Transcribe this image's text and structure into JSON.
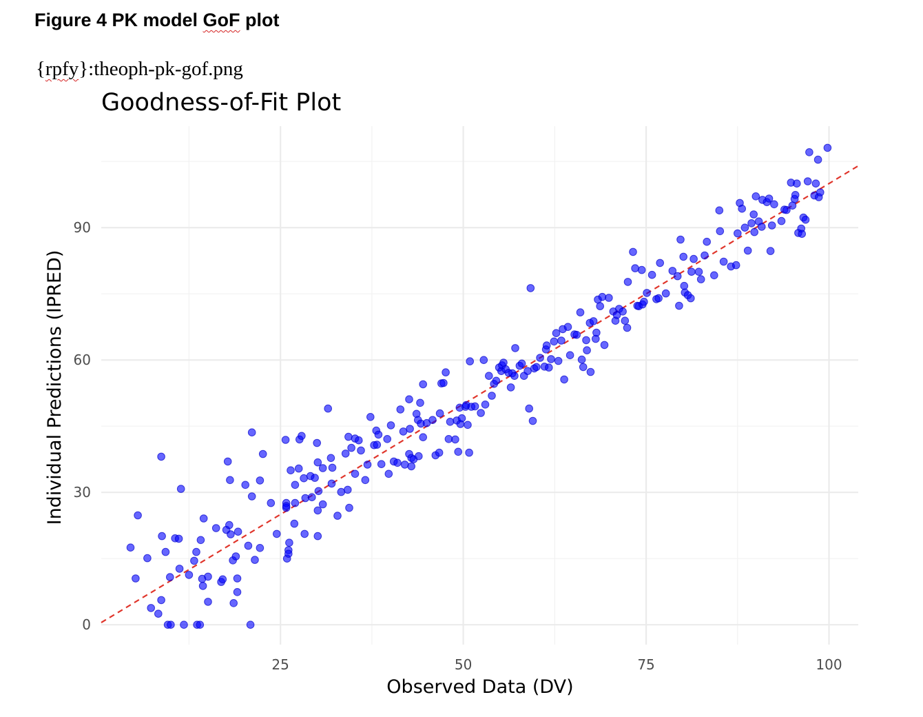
{
  "document": {
    "heading_parts": [
      "Figure 4 PK model ",
      "GoF",
      " plot"
    ],
    "reference_parts": [
      "{",
      "rpfy",
      "}:theoph-pk-gof.png"
    ]
  },
  "chart_data": {
    "type": "scatter",
    "title": "Goodness-of-Fit Plot",
    "xlabel": "Observed Data (DV)",
    "ylabel": "Individual Predictions (IPRED)",
    "xlim": [
      0.5,
      104
    ],
    "ylim": [
      -4.5,
      113
    ],
    "x_ticks": [
      25,
      50,
      75,
      100
    ],
    "x_tick_labels": [
      "25",
      "50",
      "75",
      "100"
    ],
    "y_ticks": [
      0,
      30,
      60,
      90
    ],
    "y_tick_labels": [
      "0",
      "30",
      "60",
      "90"
    ],
    "grid": true,
    "legend": "none",
    "point_color": "#0000ff",
    "reference_line": {
      "type": "identity",
      "color": "#e0352b",
      "style": "dashed"
    },
    "points": [
      [
        4.5,
        17.5
      ],
      [
        5.2,
        10.5
      ],
      [
        5.5,
        24.8
      ],
      [
        6.8,
        15.1
      ],
      [
        7.3,
        3.8
      ],
      [
        8.3,
        2.5
      ],
      [
        8.7,
        5.6
      ],
      [
        8.8,
        20.1
      ],
      [
        8.7,
        38.1
      ],
      [
        9.3,
        16.5
      ],
      [
        9.6,
        0
      ],
      [
        9.9,
        10.8
      ],
      [
        10.0,
        0
      ],
      [
        10.6,
        19.6
      ],
      [
        11.1,
        19.5
      ],
      [
        11.2,
        12.7
      ],
      [
        11.4,
        30.8
      ],
      [
        11.8,
        0
      ],
      [
        12.5,
        11.3
      ],
      [
        13.2,
        14.5
      ],
      [
        13.5,
        16.5
      ],
      [
        13.6,
        0
      ],
      [
        14.0,
        0
      ],
      [
        14.1,
        19.2
      ],
      [
        14.3,
        10.4
      ],
      [
        14.4,
        8.8
      ],
      [
        14.5,
        24.1
      ],
      [
        15.1,
        10.9
      ],
      [
        15.1,
        5.2
      ],
      [
        16.2,
        21.9
      ],
      [
        16.9,
        9.7
      ],
      [
        17.1,
        10.3
      ],
      [
        17.6,
        21.5
      ],
      [
        17.8,
        37.0
      ],
      [
        18.0,
        22.6
      ],
      [
        18.1,
        32.8
      ],
      [
        18.2,
        20.5
      ],
      [
        18.5,
        14.6
      ],
      [
        18.6,
        4.9
      ],
      [
        18.9,
        15.5
      ],
      [
        19.1,
        7.4
      ],
      [
        19.1,
        10.5
      ],
      [
        19.2,
        21.1
      ],
      [
        20.2,
        31.7
      ],
      [
        20.6,
        17.9
      ],
      [
        20.9,
        0
      ],
      [
        21.1,
        29.1
      ],
      [
        21.1,
        43.6
      ],
      [
        21.5,
        14.7
      ],
      [
        22.2,
        17.4
      ],
      [
        22.2,
        32.7
      ],
      [
        22.6,
        38.7
      ],
      [
        23.7,
        27.6
      ],
      [
        24.5,
        20.6
      ],
      [
        25.7,
        41.9
      ],
      [
        25.8,
        27.6
      ],
      [
        25.8,
        26.5
      ],
      [
        25.8,
        26.9
      ],
      [
        25.9,
        15.0
      ],
      [
        26.1,
        16.9
      ],
      [
        26.1,
        16.1
      ],
      [
        26.2,
        18.6
      ],
      [
        26.4,
        35.0
      ],
      [
        26.9,
        22.9
      ],
      [
        27.0,
        27.6
      ],
      [
        27.0,
        31.7
      ],
      [
        27.5,
        35.4
      ],
      [
        27.6,
        42.0
      ],
      [
        27.9,
        42.8
      ],
      [
        28.2,
        33.2
      ],
      [
        28.3,
        20.6
      ],
      [
        28.4,
        28.7
      ],
      [
        29.1,
        33.7
      ],
      [
        29.3,
        28.9
      ],
      [
        29.7,
        33.3
      ],
      [
        30.0,
        41.2
      ],
      [
        30.1,
        20.1
      ],
      [
        30.1,
        25.9
      ],
      [
        30.1,
        36.8
      ],
      [
        30.2,
        30.3
      ],
      [
        30.8,
        27.3
      ],
      [
        30.8,
        35.5
      ],
      [
        31.5,
        49.0
      ],
      [
        31.9,
        37.8
      ],
      [
        32.1,
        35.6
      ],
      [
        32.0,
        32.0
      ],
      [
        32.8,
        24.7
      ],
      [
        33.3,
        30.1
      ],
      [
        33.9,
        38.8
      ],
      [
        34.2,
        30.6
      ],
      [
        34.3,
        42.6
      ],
      [
        34.4,
        26.5
      ],
      [
        34.7,
        40.1
      ],
      [
        35.2,
        42.2
      ],
      [
        35.2,
        34.2
      ],
      [
        35.7,
        41.8
      ],
      [
        36.0,
        39.5
      ],
      [
        36.6,
        32.8
      ],
      [
        36.9,
        36.3
      ],
      [
        37.3,
        47.1
      ],
      [
        37.8,
        40.7
      ],
      [
        38.1,
        44.0
      ],
      [
        38.2,
        40.8
      ],
      [
        38.4,
        43.1
      ],
      [
        38.8,
        36.4
      ],
      [
        39.6,
        42.1
      ],
      [
        39.8,
        34.2
      ],
      [
        40.1,
        45.2
      ],
      [
        40.5,
        37.0
      ],
      [
        41.0,
        36.7
      ],
      [
        41.4,
        48.8
      ],
      [
        41.8,
        43.8
      ],
      [
        42.0,
        36.3
      ],
      [
        42.6,
        51.1
      ],
      [
        42.6,
        38.7
      ],
      [
        42.7,
        44.4
      ],
      [
        42.9,
        35.9
      ],
      [
        42.9,
        37.8
      ],
      [
        43.2,
        37.5
      ],
      [
        43.6,
        47.8
      ],
      [
        43.8,
        46.4
      ],
      [
        43.9,
        38.2
      ],
      [
        44.1,
        50.3
      ],
      [
        44.2,
        45.6
      ],
      [
        44.5,
        54.5
      ],
      [
        44.5,
        42.5
      ],
      [
        45.0,
        45.7
      ],
      [
        45.8,
        46.4
      ],
      [
        46.2,
        38.4
      ],
      [
        46.7,
        39.0
      ],
      [
        46.8,
        47.9
      ],
      [
        47.0,
        54.7
      ],
      [
        47.3,
        54.8
      ],
      [
        47.6,
        57.2
      ],
      [
        48.0,
        42.1
      ],
      [
        48.2,
        46.0
      ],
      [
        48.9,
        42.0
      ],
      [
        49.1,
        46.3
      ],
      [
        49.3,
        39.2
      ],
      [
        49.5,
        49.2
      ],
      [
        49.6,
        45.5
      ],
      [
        49.8,
        46.8
      ],
      [
        50.3,
        49.4
      ],
      [
        50.4,
        49.8
      ],
      [
        50.6,
        45.3
      ],
      [
        50.8,
        39.0
      ],
      [
        50.9,
        59.7
      ],
      [
        51.1,
        49.4
      ],
      [
        51.6,
        49.5
      ],
      [
        52.4,
        48.0
      ],
      [
        52.8,
        60.0
      ],
      [
        53.0,
        49.9
      ],
      [
        53.5,
        56.4
      ],
      [
        53.9,
        51.9
      ],
      [
        54.2,
        54.6
      ],
      [
        54.5,
        55.3
      ],
      [
        54.9,
        58.3
      ],
      [
        55.2,
        57.5
      ],
      [
        55.3,
        58.8
      ],
      [
        55.5,
        59.4
      ],
      [
        55.8,
        57.9
      ],
      [
        56.2,
        57.1
      ],
      [
        56.5,
        53.8
      ],
      [
        56.7,
        57.0
      ],
      [
        57.0,
        56.4
      ],
      [
        57.1,
        62.7
      ],
      [
        57.7,
        58.7
      ],
      [
        58.0,
        59.2
      ],
      [
        58.3,
        56.4
      ],
      [
        58.8,
        57.5
      ],
      [
        59.0,
        49.0
      ],
      [
        59.2,
        76.3
      ],
      [
        59.5,
        46.2
      ],
      [
        59.7,
        58.1
      ],
      [
        60.0,
        58.4
      ],
      [
        60.5,
        60.5
      ],
      [
        61.1,
        58.5
      ],
      [
        61.3,
        62.4
      ],
      [
        61.4,
        63.3
      ],
      [
        61.7,
        58.3
      ],
      [
        62.0,
        60.2
      ],
      [
        62.4,
        64.2
      ],
      [
        62.7,
        66.1
      ],
      [
        63.0,
        59.8
      ],
      [
        63.4,
        64.4
      ],
      [
        63.6,
        67.0
      ],
      [
        63.8,
        55.6
      ],
      [
        64.3,
        67.5
      ],
      [
        64.6,
        61.1
      ],
      [
        65.2,
        65.8
      ],
      [
        65.5,
        65.7
      ],
      [
        66.0,
        70.8
      ],
      [
        66.2,
        60.1
      ],
      [
        66.4,
        58.4
      ],
      [
        66.8,
        64.5
      ],
      [
        66.9,
        62.2
      ],
      [
        67.3,
        68.4
      ],
      [
        67.4,
        57.3
      ],
      [
        67.8,
        68.8
      ],
      [
        68.1,
        64.8
      ],
      [
        68.2,
        66.2
      ],
      [
        68.4,
        73.7
      ],
      [
        68.7,
        72.2
      ],
      [
        69.0,
        74.3
      ],
      [
        69.3,
        63.4
      ],
      [
        69.9,
        74.1
      ],
      [
        70.5,
        71.0
      ],
      [
        70.8,
        68.9
      ],
      [
        71.0,
        70.2
      ],
      [
        71.3,
        71.6
      ],
      [
        71.8,
        71.0
      ],
      [
        72.1,
        68.9
      ],
      [
        72.4,
        67.3
      ],
      [
        72.5,
        77.7
      ],
      [
        73.2,
        84.5
      ],
      [
        73.5,
        80.8
      ],
      [
        73.8,
        72.3
      ],
      [
        74.0,
        72.2
      ],
      [
        74.4,
        80.4
      ],
      [
        74.5,
        72.6
      ],
      [
        74.7,
        73.2
      ],
      [
        75.1,
        75.2
      ],
      [
        75.8,
        79.3
      ],
      [
        76.4,
        73.8
      ],
      [
        76.7,
        74.0
      ],
      [
        76.9,
        82.0
      ],
      [
        77.7,
        75.1
      ],
      [
        78.6,
        80.2
      ],
      [
        79.3,
        79.0
      ],
      [
        79.5,
        72.3
      ],
      [
        79.7,
        87.3
      ],
      [
        80.1,
        83.4
      ],
      [
        80.2,
        76.8
      ],
      [
        80.3,
        75.3
      ],
      [
        80.7,
        74.7
      ],
      [
        81.1,
        74.0
      ],
      [
        81.2,
        80.0
      ],
      [
        81.5,
        82.9
      ],
      [
        82.2,
        80.0
      ],
      [
        82.5,
        78.3
      ],
      [
        83.0,
        83.7
      ],
      [
        83.3,
        86.8
      ],
      [
        84.3,
        79.2
      ],
      [
        85.0,
        93.9
      ],
      [
        85.1,
        89.2
      ],
      [
        85.6,
        82.3
      ],
      [
        86.6,
        81.2
      ],
      [
        87.3,
        81.5
      ],
      [
        87.5,
        88.7
      ],
      [
        87.8,
        95.6
      ],
      [
        88.1,
        94.3
      ],
      [
        88.5,
        90.0
      ],
      [
        88.9,
        84.8
      ],
      [
        89.4,
        91.0
      ],
      [
        89.7,
        93.0
      ],
      [
        89.8,
        89.0
      ],
      [
        90.0,
        97.1
      ],
      [
        90.4,
        91.4
      ],
      [
        90.8,
        90.2
      ],
      [
        90.9,
        96.3
      ],
      [
        91.5,
        95.8
      ],
      [
        91.8,
        96.6
      ],
      [
        92.0,
        84.7
      ],
      [
        92.2,
        90.5
      ],
      [
        92.5,
        95.3
      ],
      [
        93.5,
        91.5
      ],
      [
        93.9,
        94.1
      ],
      [
        94.2,
        94.0
      ],
      [
        94.8,
        100.2
      ],
      [
        95.0,
        95.0
      ],
      [
        95.3,
        96.5
      ],
      [
        95.4,
        97.4
      ],
      [
        95.6,
        100.0
      ],
      [
        95.8,
        88.8
      ],
      [
        96.2,
        89.8
      ],
      [
        96.3,
        88.6
      ],
      [
        96.5,
        92.3
      ],
      [
        96.8,
        91.8
      ],
      [
        97.1,
        100.5
      ],
      [
        97.3,
        107.1
      ],
      [
        98.0,
        97.3
      ],
      [
        98.2,
        100.0
      ],
      [
        98.5,
        105.4
      ],
      [
        98.6,
        96.9
      ],
      [
        98.8,
        98.0
      ],
      [
        99.8,
        108.1
      ]
    ]
  }
}
